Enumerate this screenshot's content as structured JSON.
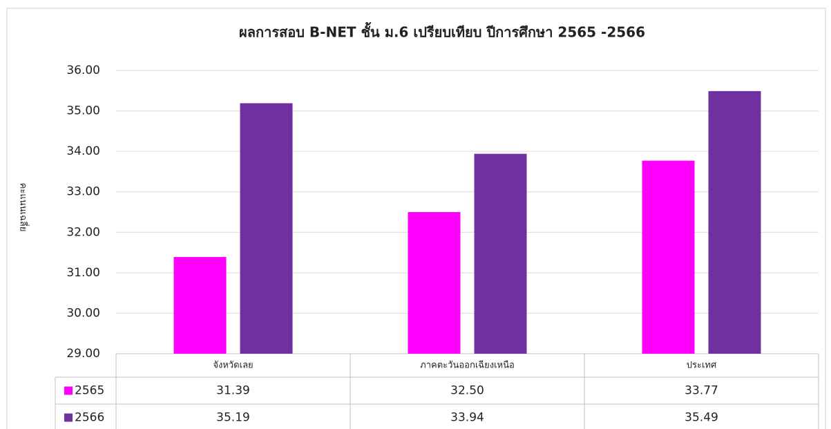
{
  "chart_data": {
    "type": "bar",
    "title": "ผลการสอบ B-NET ชั้น ม.6 เปรียบเทียบ ปีการศึกษา 2565 -2566",
    "y_label": "คะแนนเฉลี่ย",
    "categories": [
      "จังหวัดเลย",
      "ภาคตะวันออกเฉียงเหนือ",
      "ประเทศ"
    ],
    "series": [
      {
        "name": "2565",
        "color": "#ff00ff",
        "values": [
          31.39,
          32.5,
          33.77
        ],
        "value_labels": [
          "31.39",
          "32.50",
          "33.77"
        ]
      },
      {
        "name": "2566",
        "color": "#7030a0",
        "values": [
          35.19,
          33.94,
          35.49
        ],
        "value_labels": [
          "35.19",
          "33.94",
          "35.49"
        ]
      }
    ],
    "ylim": [
      29,
      36
    ],
    "yticks": [
      {
        "value": 29,
        "label": "29.00"
      },
      {
        "value": 30,
        "label": "30.00"
      },
      {
        "value": 31,
        "label": "31.00"
      },
      {
        "value": 32,
        "label": "32.00"
      },
      {
        "value": 33,
        "label": "33.00"
      },
      {
        "value": 34,
        "label": "34.00"
      },
      {
        "value": 35,
        "label": "35.00"
      },
      {
        "value": 36,
        "label": "36.00"
      }
    ],
    "grid": true,
    "data_table": true
  }
}
